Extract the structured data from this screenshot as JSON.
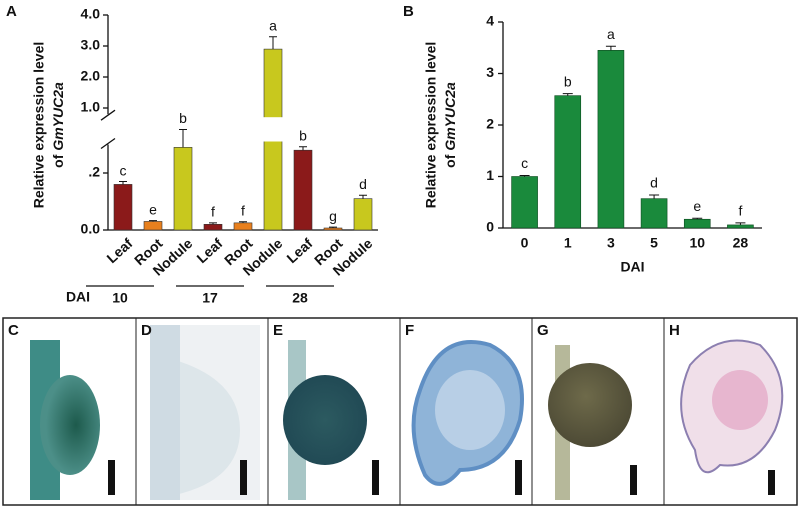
{
  "chart_data": [
    {
      "type": "bar",
      "label": "A",
      "ylabel_line1": "Relative expression level",
      "ylabel_prefix": "of",
      "gene": "GmYUC2a",
      "categories": [
        "Leaf",
        "Root",
        "Nodule",
        "Leaf",
        "Root",
        "Nodule",
        "Leaf",
        "Root",
        "Nodule"
      ],
      "values": [
        0.16,
        0.03,
        0.29,
        0.02,
        0.025,
        2.9,
        0.28,
        0.007,
        0.11
      ],
      "errors": [
        0.01,
        0.003,
        0.015,
        0.005,
        0.004,
        0.4,
        0.012,
        0.003,
        0.012
      ],
      "letters": [
        "c",
        "e",
        "b",
        "f",
        "f",
        "a",
        "b",
        "g",
        "d"
      ],
      "colors": [
        "#8b1a1a",
        "#e8801e",
        "#c8c81e",
        "#8b1a1a",
        "#e8801e",
        "#c8c81e",
        "#8b1a1a",
        "#e8801e",
        "#c8c81e"
      ],
      "groups": [
        "10",
        "17",
        "28"
      ],
      "group_label": "DAI",
      "ylim": [
        0,
        4
      ],
      "axis_break": [
        0.3,
        0.8
      ],
      "yticks": [
        {
          "value": 0,
          "label": "0.0"
        },
        {
          "value": 0.2,
          "label": ".2"
        },
        {
          "value": 1,
          "label": "1.0"
        },
        {
          "value": 2,
          "label": "2.0"
        },
        {
          "value": 3,
          "label": "3.0"
        },
        {
          "value": 4,
          "label": "4.0"
        }
      ]
    },
    {
      "type": "bar",
      "label": "B",
      "ylabel_line1": "Relative expression level",
      "ylabel_prefix": "of",
      "gene": "GmYUC2a",
      "xlabel": "DAI",
      "categories": [
        "0",
        "1",
        "3",
        "5",
        "10",
        "28"
      ],
      "values": [
        1.0,
        2.57,
        3.45,
        0.57,
        0.17,
        0.06
      ],
      "errors": [
        0.02,
        0.04,
        0.08,
        0.07,
        0.02,
        0.04
      ],
      "letters": [
        "c",
        "b",
        "a",
        "d",
        "e",
        "f"
      ],
      "color": "#1a8a3c",
      "ylim": [
        0,
        4
      ],
      "yticks": [
        0,
        1,
        2,
        3,
        4
      ]
    }
  ],
  "panels": [
    "C",
    "D",
    "E",
    "F",
    "G",
    "H"
  ]
}
